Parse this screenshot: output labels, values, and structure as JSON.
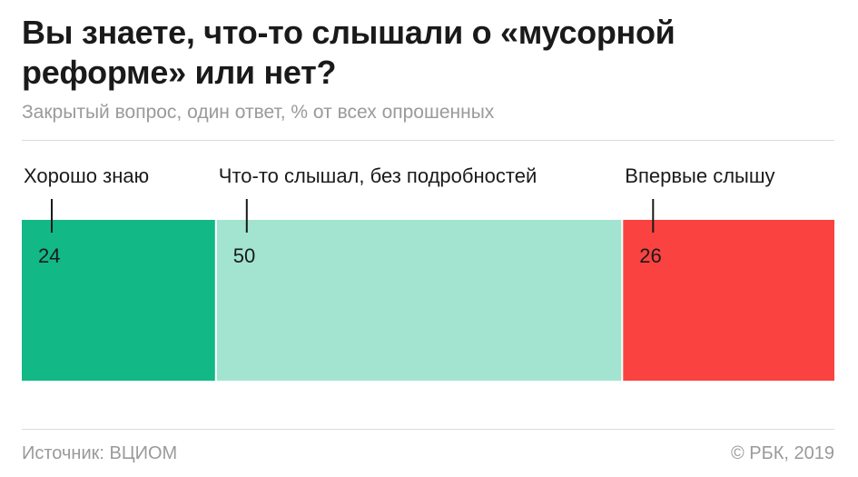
{
  "title": "Вы знаете, что-то слышали о «мусорной реформе» или нет?",
  "subtitle": "Закрытый вопрос, один ответ, % от всех опрошенных",
  "footer": {
    "source": "Источник: ВЦИОМ",
    "copyright": "© РБК, 2019"
  },
  "chart_data": {
    "type": "bar",
    "orientation": "horizontal-stacked",
    "categories": [
      "Хорошо знаю",
      "Что-то слышал, без подробностей",
      "Впервые слышу"
    ],
    "values": [
      24,
      50,
      26
    ],
    "colors": [
      "#12b886",
      "#a3e4d0",
      "#fa4340"
    ],
    "xlim": [
      0,
      100
    ],
    "grid": false,
    "legend": "none"
  }
}
